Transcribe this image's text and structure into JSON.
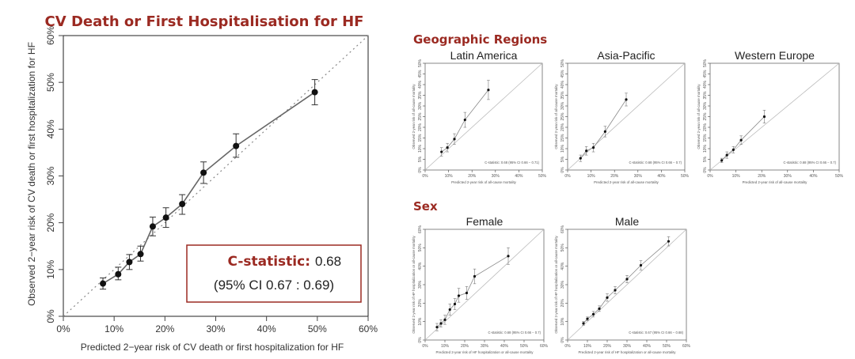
{
  "main": {
    "title": "CV Death or First Hospitalisation for HF",
    "xlabel": "Predicted 2−year risk of CV death or first hospitalization for HF",
    "ylabel": "Observed 2−year risk of CV death or first hospitalization for HF",
    "stat_label": "C-statistic:",
    "stat_value": "0.68",
    "ci_text": "(95% CI 0.67 : 0.69)"
  },
  "sections": {
    "geo": "Geographic Regions",
    "sex": "Sex"
  },
  "colors": {
    "title": "#9b2a22",
    "line": "#666666",
    "point": "#111111",
    "box": "#9b2a22"
  },
  "chart_data": [
    {
      "id": "main",
      "type": "scatter",
      "title": "CV Death or First Hospitalisation for HF",
      "xlabel": "Predicted 2−year risk of CV death or first hospitalization for HF",
      "ylabel": "Observed 2−year risk of CV death or first hospitalization for HF",
      "xlim": [
        0,
        60
      ],
      "ylim": [
        0,
        60
      ],
      "xticks": [
        "0%",
        "10%",
        "20%",
        "30%",
        "40%",
        "50%",
        "60%"
      ],
      "yticks": [
        "0%",
        "10%",
        "20%",
        "30%",
        "40%",
        "50%",
        "60%"
      ],
      "reference_line": "diagonal",
      "points": [
        {
          "x": 7.8,
          "y": 7.0,
          "lo": 5.8,
          "hi": 8.2
        },
        {
          "x": 10.8,
          "y": 9.0,
          "lo": 7.8,
          "hi": 10.5
        },
        {
          "x": 13.0,
          "y": 11.6,
          "lo": 10.0,
          "hi": 13.2
        },
        {
          "x": 15.2,
          "y": 13.3,
          "lo": 11.8,
          "hi": 15.0
        },
        {
          "x": 17.6,
          "y": 19.2,
          "lo": 17.2,
          "hi": 21.2
        },
        {
          "x": 20.2,
          "y": 21.1,
          "lo": 19.0,
          "hi": 23.2
        },
        {
          "x": 23.4,
          "y": 24.0,
          "lo": 21.8,
          "hi": 26.0
        },
        {
          "x": 27.6,
          "y": 30.7,
          "lo": 28.4,
          "hi": 33.0
        },
        {
          "x": 34.0,
          "y": 36.4,
          "lo": 34.0,
          "hi": 39.0
        },
        {
          "x": 49.5,
          "y": 47.9,
          "lo": 45.2,
          "hi": 50.6
        }
      ],
      "annotation": "C-statistic: 0.68 (95% CI 0.67 : 0.69)"
    },
    {
      "id": "latin",
      "type": "scatter",
      "title": "Latin America",
      "xlabel": "Predicted 2-year risk of all-cause mortality",
      "ylabel": "Observed 2-year risk of all-cause mortality",
      "xlim": [
        0,
        50
      ],
      "ylim": [
        0,
        50
      ],
      "xticks": [
        "0%",
        "10%",
        "20%",
        "30%",
        "40%",
        "50%"
      ],
      "yticks": [
        "0%",
        "5%",
        "10%",
        "15%",
        "20%",
        "25%",
        "30%",
        "35%",
        "40%",
        "45%",
        "50%"
      ],
      "points": [
        {
          "x": 7,
          "y": 8.5,
          "lo": 6.5,
          "hi": 10.5
        },
        {
          "x": 9.5,
          "y": 10.5,
          "lo": 8.5,
          "hi": 12.5
        },
        {
          "x": 12.5,
          "y": 14.5,
          "lo": 12,
          "hi": 17
        },
        {
          "x": 17,
          "y": 23.5,
          "lo": 20,
          "hi": 27
        },
        {
          "x": 27,
          "y": 37.5,
          "lo": 33,
          "hi": 42
        }
      ],
      "annotation": "C-statistic: 0.68 (95% CI 0.66 − 0.71)"
    },
    {
      "id": "asia",
      "type": "scatter",
      "title": "Asia-Pacific",
      "xlabel": "Predicted 2-year risk of all-cause mortality",
      "ylabel": "Observed 2-year risk of all-cause mortality",
      "xlim": [
        0,
        50
      ],
      "ylim": [
        0,
        50
      ],
      "xticks": [
        "0%",
        "10%",
        "20%",
        "30%",
        "40%",
        "50%"
      ],
      "yticks": [
        "0%",
        "5%",
        "10%",
        "15%",
        "20%",
        "25%",
        "30%",
        "35%",
        "40%",
        "45%",
        "50%"
      ],
      "points": [
        {
          "x": 5.5,
          "y": 5.5,
          "lo": 4,
          "hi": 7
        },
        {
          "x": 8,
          "y": 9,
          "lo": 7,
          "hi": 11
        },
        {
          "x": 11,
          "y": 10.5,
          "lo": 8.5,
          "hi": 12.5
        },
        {
          "x": 16,
          "y": 18,
          "lo": 15.5,
          "hi": 20.5
        },
        {
          "x": 25,
          "y": 33,
          "lo": 30,
          "hi": 36
        }
      ],
      "annotation": "C-statistic: 0.68 (95% CI 0.66 − 0.7)"
    },
    {
      "id": "western",
      "type": "scatter",
      "title": "Western Europe",
      "xlabel": "Predicted 2-year risk of all-cause mortality",
      "ylabel": "Observed 2-year risk of all-cause mortality",
      "xlim": [
        0,
        50
      ],
      "ylim": [
        0,
        50
      ],
      "xticks": [
        "0%",
        "10%",
        "20%",
        "30%",
        "40%",
        "50%"
      ],
      "yticks": [
        "0%",
        "5%",
        "10%",
        "15%",
        "20%",
        "25%",
        "30%",
        "35%",
        "40%",
        "45%",
        "50%"
      ],
      "points": [
        {
          "x": 4.5,
          "y": 4.5,
          "lo": 3.5,
          "hi": 5.5
        },
        {
          "x": 6.5,
          "y": 7,
          "lo": 5.5,
          "hi": 8.5
        },
        {
          "x": 9,
          "y": 9.5,
          "lo": 8,
          "hi": 11
        },
        {
          "x": 12,
          "y": 14,
          "lo": 12,
          "hi": 16
        },
        {
          "x": 21,
          "y": 25,
          "lo": 22,
          "hi": 28
        }
      ],
      "annotation": "C-statistic: 0.68 (95% CI 0.66 − 0.7)"
    },
    {
      "id": "female",
      "type": "scatter",
      "title": "Female",
      "xlabel": "Predicted 2-year risk of HF hospitalization or all-cause mortality",
      "ylabel": "Observed 2-year risk of HF hospitalization or all-cause mortality",
      "xlim": [
        0,
        60
      ],
      "ylim": [
        0,
        60
      ],
      "xticks": [
        "0%",
        "10%",
        "20%",
        "30%",
        "40%",
        "50%",
        "60%"
      ],
      "yticks": [
        "0%",
        "10%",
        "20%",
        "30%",
        "40%",
        "50%",
        "60%"
      ],
      "points": [
        {
          "x": 6,
          "y": 7,
          "lo": 5,
          "hi": 9
        },
        {
          "x": 8,
          "y": 9,
          "lo": 7,
          "hi": 11
        },
        {
          "x": 10,
          "y": 11,
          "lo": 8.5,
          "hi": 13.5
        },
        {
          "x": 12.5,
          "y": 16.5,
          "lo": 13.5,
          "hi": 19.5
        },
        {
          "x": 15,
          "y": 19.5,
          "lo": 16.5,
          "hi": 22.5
        },
        {
          "x": 17,
          "y": 24,
          "lo": 20.5,
          "hi": 28
        },
        {
          "x": 21,
          "y": 25.5,
          "lo": 22,
          "hi": 29
        },
        {
          "x": 25,
          "y": 34.5,
          "lo": 30.5,
          "hi": 38.5
        },
        {
          "x": 42,
          "y": 45.5,
          "lo": 41,
          "hi": 50
        }
      ],
      "annotation": "C-statistic: 0.68 (95% CI 0.66 − 0.7)"
    },
    {
      "id": "male",
      "type": "scatter",
      "title": "Male",
      "xlabel": "Predicted 2-year risk of HF hospitalization or all-cause mortality",
      "ylabel": "Observed 2-year risk of HF hospitalization or all-cause mortality",
      "xlim": [
        0,
        60
      ],
      "ylim": [
        0,
        60
      ],
      "xticks": [
        "0%",
        "10%",
        "20%",
        "30%",
        "40%",
        "50%",
        "60%"
      ],
      "yticks": [
        "0%",
        "10%",
        "20%",
        "30%",
        "40%",
        "50%",
        "60%"
      ],
      "points": [
        {
          "x": 8,
          "y": 9,
          "lo": 8,
          "hi": 10
        },
        {
          "x": 10,
          "y": 11.5,
          "lo": 10.5,
          "hi": 12.5
        },
        {
          "x": 13,
          "y": 14,
          "lo": 12.5,
          "hi": 15.5
        },
        {
          "x": 16,
          "y": 17,
          "lo": 15.5,
          "hi": 18.5
        },
        {
          "x": 20,
          "y": 23,
          "lo": 21,
          "hi": 25
        },
        {
          "x": 24,
          "y": 27,
          "lo": 25,
          "hi": 29
        },
        {
          "x": 30,
          "y": 33,
          "lo": 31,
          "hi": 35
        },
        {
          "x": 37,
          "y": 40.5,
          "lo": 38,
          "hi": 43
        },
        {
          "x": 51,
          "y": 53.5,
          "lo": 51,
          "hi": 56
        }
      ],
      "annotation": "C-statistic: 0.67 (95% CI 0.66 − 0.68)"
    }
  ]
}
